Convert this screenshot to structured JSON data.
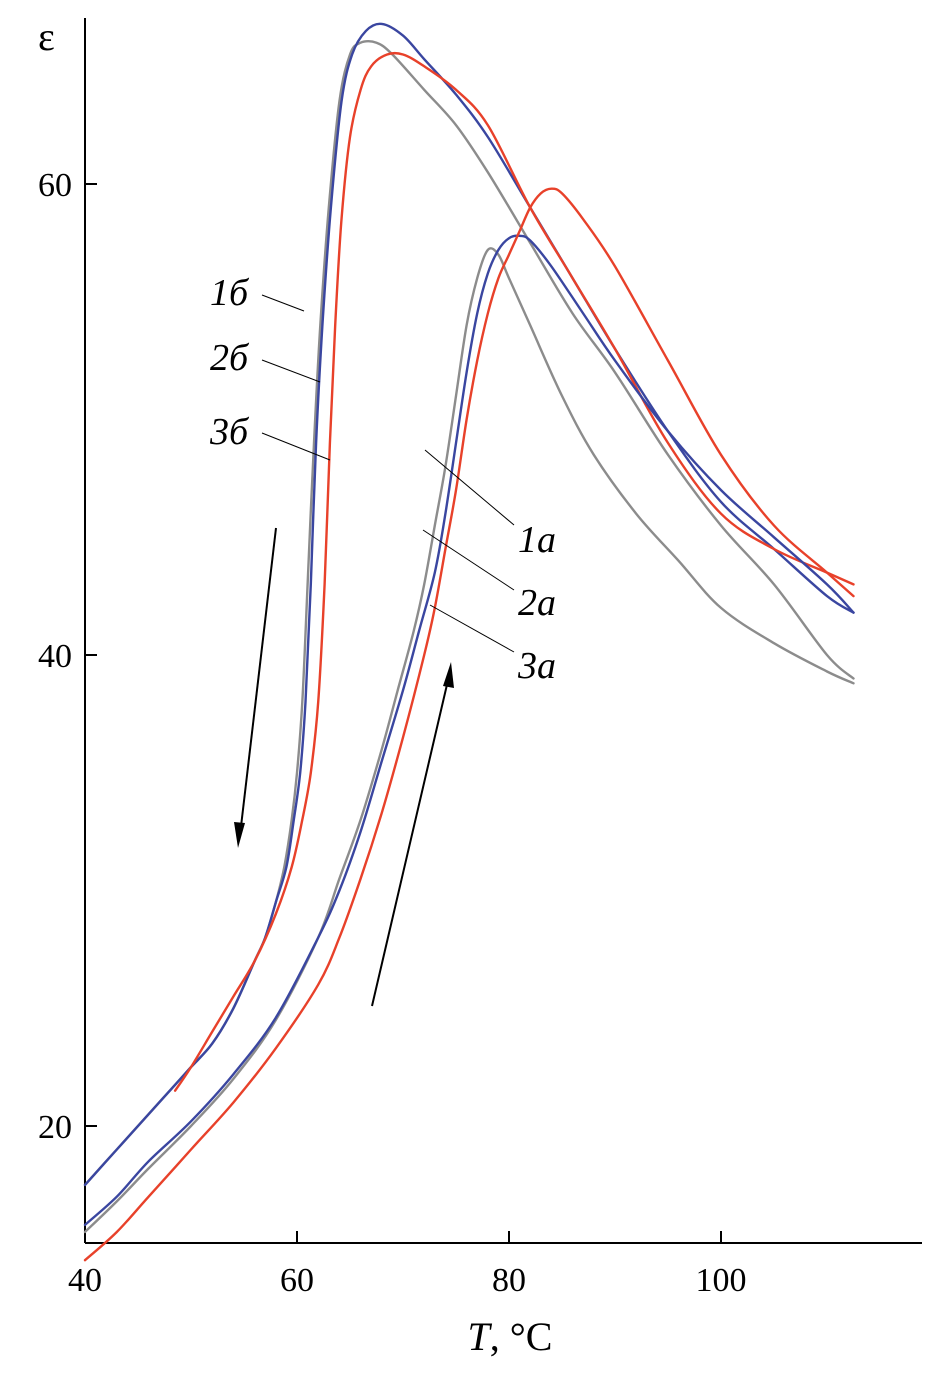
{
  "chart_data": {
    "type": "line",
    "xlabel_italic": "T",
    "xlabel_rest": ", °C",
    "ylabel": "ε",
    "xlim": [
      40,
      119
    ],
    "ylim": [
      15,
      67
    ],
    "x_ticks": [
      "40",
      "60",
      "80",
      "100"
    ],
    "y_ticks": [
      "20",
      "40",
      "60"
    ],
    "colors": {
      "gray": "#8c8c8c",
      "blue": "#3a46a0",
      "red": "#e8412a"
    },
    "series": [
      {
        "name": "1б",
        "color": "gray",
        "x": [
          40,
          43,
          46,
          48,
          50,
          52,
          54,
          56,
          57,
          58,
          58.8,
          59.5,
          60,
          60.5,
          61,
          61.6,
          62.2,
          63,
          64,
          65,
          66,
          67.5,
          69,
          72,
          75,
          78,
          82,
          86,
          90,
          95,
          100,
          105,
          110,
          112.5
        ],
        "y": [
          17.5,
          19,
          20.5,
          21.5,
          22.5,
          23.5,
          25,
          27,
          28,
          29.5,
          31,
          33,
          35,
          38,
          43,
          49,
          54,
          59,
          63.5,
          65.5,
          66,
          66,
          65.5,
          64,
          62.5,
          60.5,
          57.5,
          54.5,
          52,
          48.5,
          45.5,
          43,
          40,
          39
        ]
      },
      {
        "name": "2б",
        "color": "blue",
        "x": [
          40,
          43,
          46,
          48,
          50,
          52,
          54,
          56,
          57,
          58,
          59,
          59.7,
          60.3,
          60.8,
          61.3,
          61.8,
          62.4,
          63.2,
          64.2,
          65.2,
          66.5,
          68,
          70,
          72,
          75,
          78,
          82,
          86,
          90,
          95,
          100,
          105,
          110,
          112.5
        ],
        "y": [
          17.5,
          19,
          20.5,
          21.5,
          22.5,
          23.5,
          25,
          27,
          28,
          29.5,
          31,
          33,
          35,
          38,
          43,
          49,
          54,
          59,
          63.5,
          65.5,
          66.5,
          66.8,
          66.3,
          65.3,
          63.8,
          62,
          59,
          56,
          53,
          49.5,
          46.5,
          44.5,
          42.5,
          41.8
        ]
      },
      {
        "name": "3б",
        "color": "red",
        "x": [
          48.5,
          50,
          52,
          54,
          56,
          58,
          59.5,
          60.5,
          61.3,
          62,
          62.6,
          63.1,
          63.6,
          64.2,
          65,
          66,
          67,
          68.5,
          70,
          72,
          75,
          78,
          82,
          86,
          90,
          95,
          100,
          105,
          110,
          112.5
        ],
        "y": [
          21.5,
          22.5,
          24,
          25.5,
          27,
          29,
          31,
          33,
          35,
          38,
          43,
          49,
          54,
          58.5,
          62,
          64,
          65,
          65.5,
          65.5,
          65,
          64,
          62.5,
          59,
          56,
          53,
          49,
          46,
          44.5,
          43.5,
          43
        ]
      },
      {
        "name": "1а",
        "color": "gray",
        "x": [
          40,
          43,
          46,
          50,
          54,
          58,
          62,
          64,
          66,
          68,
          69.5,
          71,
          72,
          73,
          74,
          75,
          76,
          77,
          78,
          79,
          80,
          82,
          85,
          88,
          92,
          96,
          100,
          105,
          110,
          112.5
        ],
        "y": [
          15.5,
          16.8,
          18.2,
          20,
          22,
          24.5,
          28,
          30.5,
          33,
          36,
          38.5,
          41,
          43,
          45.5,
          48,
          51,
          54,
          56,
          57.2,
          57,
          56,
          54,
          51,
          48.5,
          46,
          44,
          42,
          40.5,
          39.3,
          38.8
        ]
      },
      {
        "name": "2а",
        "color": "blue",
        "x": [
          40,
          43,
          46,
          50,
          54,
          58,
          62,
          64,
          66,
          68,
          70,
          71.5,
          73,
          74,
          75,
          76,
          77,
          78,
          79,
          80,
          81,
          82,
          84,
          87,
          90,
          95,
          100,
          105,
          110,
          112.5
        ],
        "y": [
          15.8,
          17,
          18.5,
          20.2,
          22.2,
          24.6,
          28,
          30,
          32.5,
          35.5,
          38.5,
          41,
          43.5,
          46,
          49,
          52,
          54.5,
          56.2,
          57.2,
          57.7,
          57.8,
          57.6,
          56.5,
          54.5,
          52.5,
          49.5,
          47,
          45,
          43,
          41.8
        ]
      },
      {
        "name": "3а",
        "color": "red",
        "x": [
          40,
          43,
          46,
          50,
          54,
          58,
          62,
          64,
          66,
          68,
          70,
          72,
          73,
          74,
          75,
          76,
          77,
          78,
          79,
          80,
          81,
          82,
          83,
          84,
          85,
          87,
          90,
          95,
          100,
          105,
          110,
          112.5
        ],
        "y": [
          14.3,
          15.5,
          17,
          19,
          21,
          23.3,
          26,
          28,
          30.5,
          33.3,
          36.5,
          40,
          42,
          44.5,
          47,
          50,
          52.5,
          54.5,
          56,
          57,
          58,
          59,
          59.6,
          59.8,
          59.6,
          58.5,
          56.5,
          52.5,
          48.5,
          45.5,
          43.5,
          42.5
        ]
      }
    ],
    "labels": [
      {
        "text": "1б",
        "series": "1б"
      },
      {
        "text": "2б",
        "series": "2б"
      },
      {
        "text": "3б",
        "series": "3б"
      },
      {
        "text": "1а",
        "series": "1а"
      },
      {
        "text": "2а",
        "series": "2а"
      },
      {
        "text": "3а",
        "series": "3а"
      }
    ],
    "arrows": [
      {
        "direction": "cooling",
        "from": [
          58,
          50
        ],
        "to": [
          54.5,
          31.5
        ]
      },
      {
        "direction": "heating",
        "from": [
          67,
          25.5
        ],
        "to": [
          74.5,
          40
        ]
      }
    ],
    "grid": false
  }
}
